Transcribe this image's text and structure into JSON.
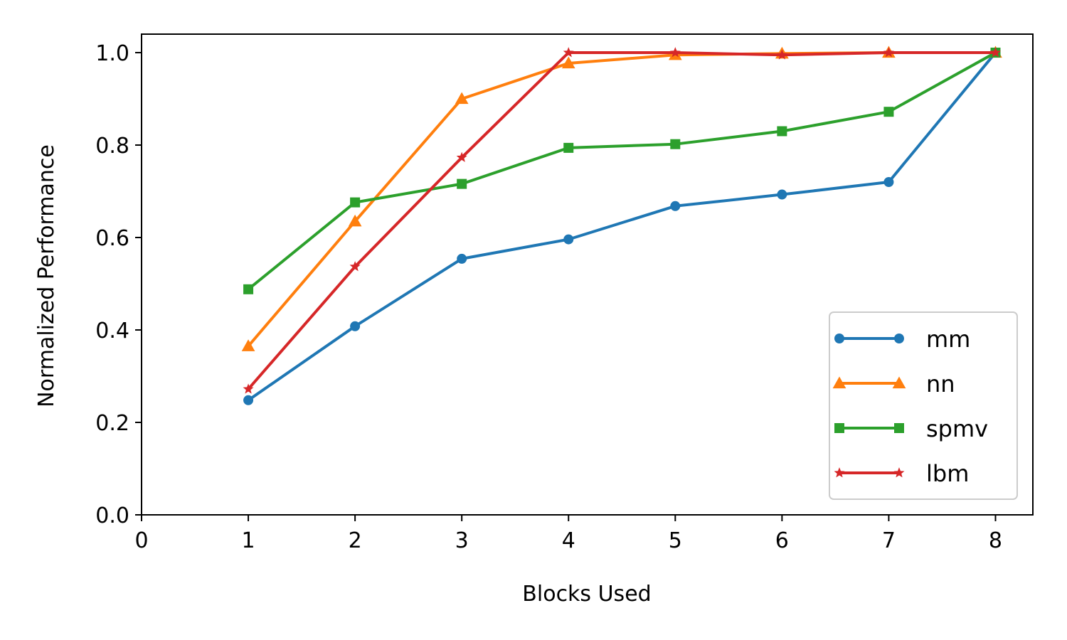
{
  "chart_data": {
    "type": "line",
    "xlabel": "Blocks Used",
    "ylabel": "Normalized Performance",
    "xlim": [
      0,
      8.35
    ],
    "ylim": [
      0,
      1.04
    ],
    "xticks": [
      0,
      1,
      2,
      3,
      4,
      5,
      6,
      7,
      8
    ],
    "yticks": [
      "0.0",
      "0.2",
      "0.4",
      "0.6",
      "0.8",
      "1.0"
    ],
    "grid": false,
    "legend_position": "lower-right",
    "x": [
      1,
      2,
      3,
      4,
      5,
      6,
      7,
      8
    ],
    "series": [
      {
        "name": "mm",
        "color": "#1f77b4",
        "marker": "circle",
        "values": [
          0.248,
          0.408,
          0.554,
          0.596,
          0.668,
          0.693,
          0.72,
          1.0
        ]
      },
      {
        "name": "nn",
        "color": "#ff7f0e",
        "marker": "triangle",
        "values": [
          0.365,
          0.635,
          0.9,
          0.977,
          0.995,
          0.998,
          1.0,
          1.0
        ]
      },
      {
        "name": "spmv",
        "color": "#2ca02c",
        "marker": "square",
        "values": [
          0.488,
          0.676,
          0.716,
          0.794,
          0.802,
          0.83,
          0.872,
          1.0
        ]
      },
      {
        "name": "lbm",
        "color": "#d62728",
        "marker": "star",
        "values": [
          0.272,
          0.537,
          0.773,
          1.0,
          1.0,
          0.995,
          1.0,
          1.0
        ]
      }
    ]
  }
}
